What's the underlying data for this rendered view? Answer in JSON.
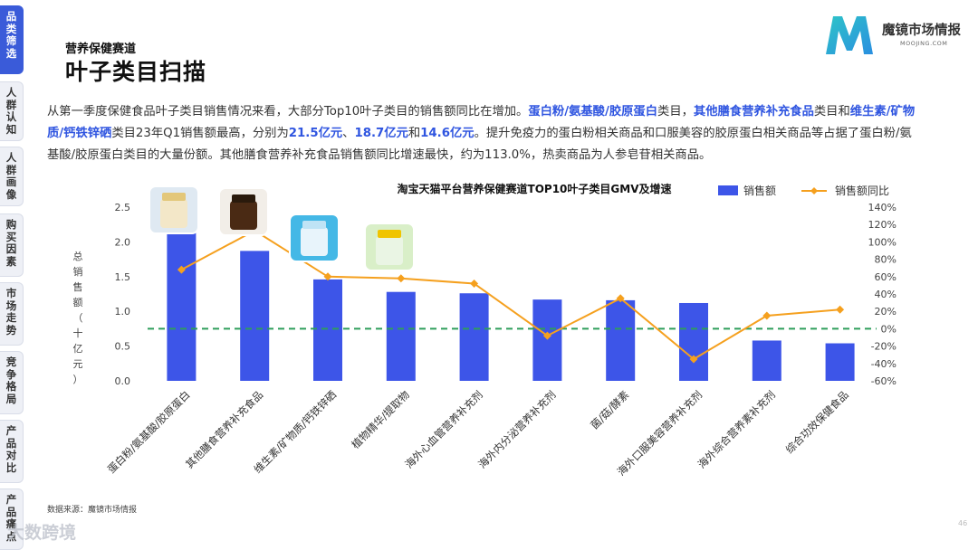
{
  "sidebar": {
    "tabs": [
      {
        "label": "品类筛选",
        "active": true
      },
      {
        "label": "人群认知",
        "active": false
      },
      {
        "label": "人群画像",
        "active": false
      },
      {
        "label": "购买因素",
        "active": false
      },
      {
        "label": "市场走势",
        "active": false
      },
      {
        "label": "竞争格局",
        "active": false
      },
      {
        "label": "产品对比",
        "active": false
      },
      {
        "label": "产品痛点",
        "active": false
      }
    ]
  },
  "header": {
    "section": "营养保健赛道",
    "title": "叶子类目扫描"
  },
  "logo": {
    "name": "魔镜市场情报",
    "url": "MOOJING.COM",
    "colors": [
      "#2ec4c8",
      "#2a8fe0"
    ]
  },
  "description": {
    "p1": "从第一季度保健食品叶子类目销售情况来看，大部分Top10叶子类目的销售额同比在增加。",
    "h1": "蛋白粉/氨基酸/胶原蛋白",
    "p2": "类目，",
    "h2": "其他膳食营养补充食品",
    "p3": "类目和",
    "h3": "维生素/矿物质/钙铁锌硒",
    "p4": "类目23年Q1销售额最高，分别为",
    "h4": "21.5亿元",
    "p5": "、",
    "h5": "18.7亿元",
    "p6": "和",
    "h6": "14.6亿元",
    "p7": "。提升免疫力的蛋白粉相关商品和口服美容的胶原蛋白相关商品等占据了蛋白粉/氨基酸/胶原蛋白类目的大量份额。其他膳食营养补充食品销售额同比增速最快，约为113.0%，热卖商品为人参皂苷相关商品。"
  },
  "chart_data": {
    "type": "bar",
    "title": "淘宝天猫平台营养保健赛道TOP10叶子类目GMV及增速",
    "ylabel": "总销售额（十亿元）",
    "categories": [
      "蛋白粉/氨基酸/胶原蛋白",
      "其他膳食营养补充食品",
      "维生素/矿物质/钙铁锌硒",
      "植物精华/提取物",
      "海外心血管营养补充剂",
      "海外内分泌营养补充剂",
      "菌/菇/酵素",
      "海外口服美容营养补充剂",
      "海外综合营养素补充剂",
      "综合功效保健食品"
    ],
    "series": [
      {
        "name": "销售额",
        "type": "bar",
        "axis": "left",
        "color": "#3d55e8",
        "values": [
          2.15,
          1.87,
          1.46,
          1.28,
          1.26,
          1.17,
          1.16,
          1.12,
          0.58,
          0.54
        ]
      },
      {
        "name": "销售额同比",
        "type": "line",
        "axis": "right",
        "color": "#f5a01e",
        "values": [
          68,
          113,
          60,
          58,
          52,
          -8,
          35,
          -35,
          15,
          22
        ]
      }
    ],
    "ylim_left": [
      0,
      2.5
    ],
    "yticks_left": [
      "0.0",
      "0.5",
      "1.0",
      "1.5",
      "2.0",
      "2.5"
    ],
    "ylim_right": [
      -60,
      140
    ],
    "yticks_right": [
      "-60%",
      "-40%",
      "-20%",
      "0%",
      "20%",
      "40%",
      "60%",
      "80%",
      "100%",
      "120%",
      "140%"
    ],
    "reference_line": {
      "value": 0,
      "axis": "right",
      "color": "#2e9e5b",
      "style": "dashed"
    },
    "legend_position": "top-right",
    "grid": false
  },
  "footer": {
    "source": "数据来源：魔镜市场情报",
    "watermark": "大数跨境",
    "page": "46"
  }
}
